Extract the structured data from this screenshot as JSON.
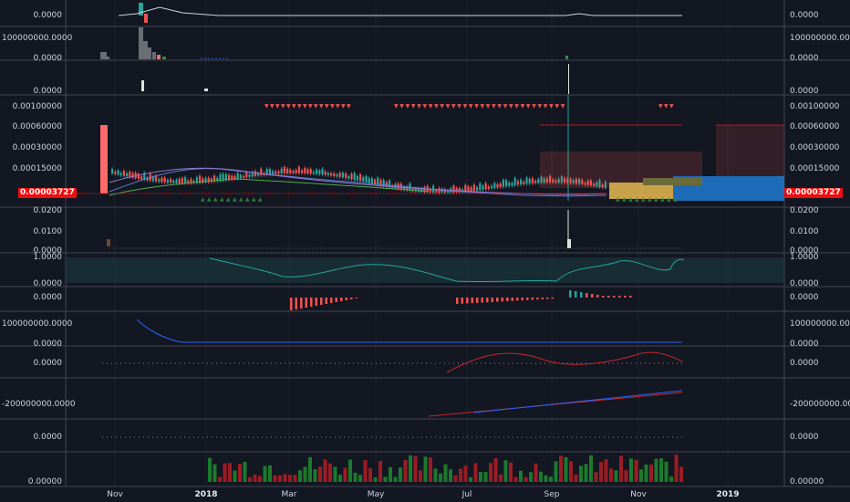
{
  "colors": {
    "background": "#131722",
    "grid": "#1e222d",
    "separator": "#434651",
    "up": "#26a69a",
    "down": "#ef5350",
    "volume_up": "#1b7a2b",
    "volume_down": "#9c1c24",
    "price_tag": "#f20d0d",
    "cloud_blue": "#2962ff",
    "cloud_orange": "#c8a24a",
    "rsi_fill": "#1c3a40"
  },
  "panes": [
    {
      "name": "pane-1",
      "left_label": "0.0000",
      "right_label": "0.0000"
    },
    {
      "name": "pane-2",
      "left_label": "100000000.0000",
      "left_label2": "0.0000",
      "right_label": "100000000.0000",
      "right_label2": "0.0000"
    },
    {
      "name": "pane-3",
      "left_label": "0.0000",
      "right_label": "0.0000"
    },
    {
      "name": "pane-main",
      "labels": [
        "0.00100000",
        "0.00060000",
        "0.00030000",
        "0.00015000"
      ],
      "price_tag": "0.00003727"
    },
    {
      "name": "pane-5",
      "labels": [
        "0.0200",
        "0.0100",
        "0.0000"
      ]
    },
    {
      "name": "pane-rsi",
      "labels": [
        "1.0000",
        "0.0000"
      ]
    },
    {
      "name": "pane-macd",
      "labels": [
        "0.0000"
      ]
    },
    {
      "name": "pane-8",
      "labels": [
        "100000000.0000",
        "0.0000"
      ]
    },
    {
      "name": "pane-9",
      "labels": [
        "0.0000"
      ]
    },
    {
      "name": "pane-10",
      "labels": [
        "-200000000.0000"
      ]
    },
    {
      "name": "pane-11",
      "labels": [
        "0.0000"
      ]
    },
    {
      "name": "pane-volume",
      "labels": [
        "0.00000"
      ]
    }
  ],
  "time_axis": [
    {
      "label": "Nov",
      "bold": false
    },
    {
      "label": "2018",
      "bold": true
    },
    {
      "label": "Mar",
      "bold": false
    },
    {
      "label": "May",
      "bold": false
    },
    {
      "label": "Jul",
      "bold": false
    },
    {
      "label": "Sep",
      "bold": false
    },
    {
      "label": "Nov",
      "bold": false
    },
    {
      "label": "2019",
      "bold": true
    }
  ]
}
